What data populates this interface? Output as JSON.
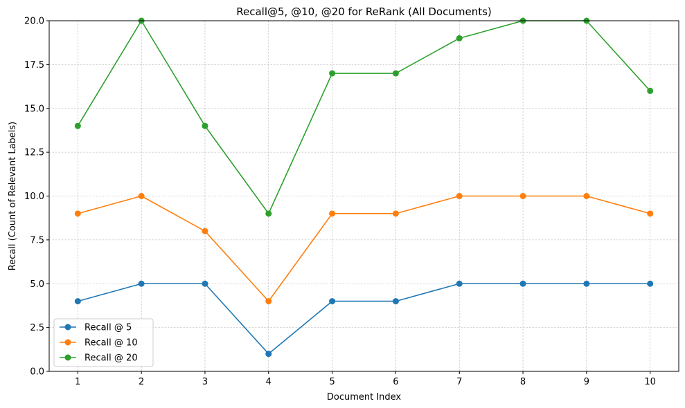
{
  "chart_data": {
    "type": "line",
    "title": "Recall@5, @10, @20 for ReRank (All Documents)",
    "xlabel": "Document Index",
    "ylabel": "Recall (Count of Relevant Labels)",
    "x": [
      1,
      2,
      3,
      4,
      5,
      6,
      7,
      8,
      9,
      10
    ],
    "x_tick_labels": [
      "1",
      "2",
      "3",
      "4",
      "5",
      "6",
      "7",
      "8",
      "9",
      "10"
    ],
    "ylim": [
      0,
      20
    ],
    "y_ticks": [
      0,
      2.5,
      5,
      7.5,
      10,
      12.5,
      15,
      17.5,
      20
    ],
    "y_tick_labels": [
      "0.0",
      "2.5",
      "5.0",
      "7.5",
      "10.0",
      "12.5",
      "15.0",
      "17.5",
      "20.0"
    ],
    "grid": true,
    "legend_position": "lower-left",
    "series": [
      {
        "name": "Recall @ 5",
        "color": "#1f77b4",
        "values": [
          4,
          5,
          5,
          1,
          4,
          4,
          5,
          5,
          5,
          5
        ]
      },
      {
        "name": "Recall @ 10",
        "color": "#ff7f0e",
        "values": [
          9,
          10,
          8,
          4,
          9,
          9,
          10,
          10,
          10,
          9
        ]
      },
      {
        "name": "Recall @ 20",
        "color": "#2ca02c",
        "values": [
          14,
          20,
          14,
          9,
          17,
          17,
          19,
          20,
          20,
          16
        ]
      }
    ]
  }
}
